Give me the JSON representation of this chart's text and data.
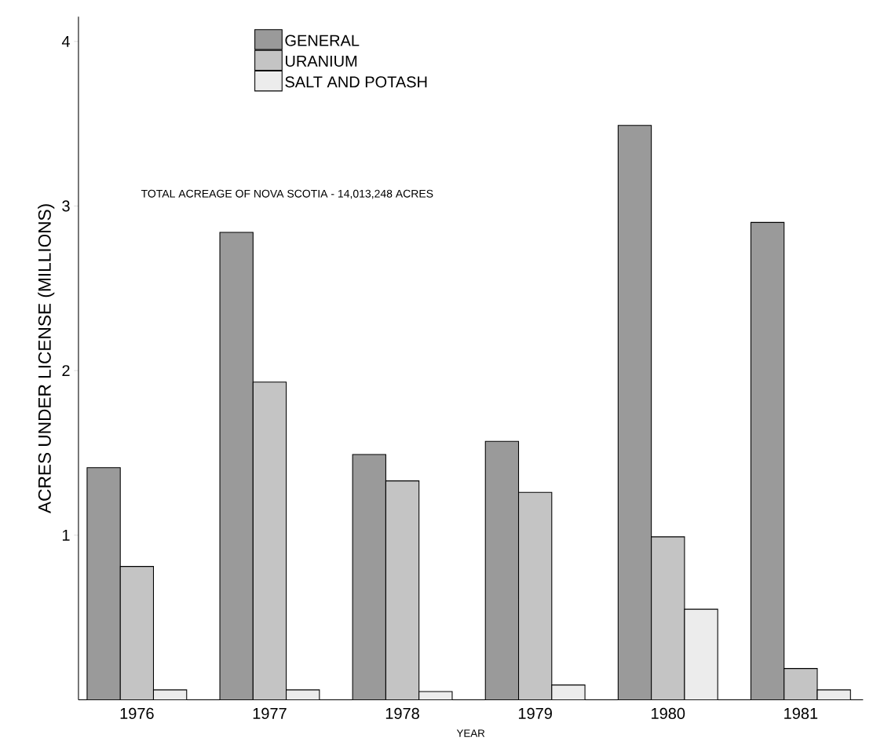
{
  "chart_data": {
    "type": "bar",
    "xlabel": "YEAR",
    "ylabel": "ACRES UNDER LICENSE (MILLIONS)",
    "categories": [
      "1976",
      "1977",
      "1978",
      "1979",
      "1980",
      "1981"
    ],
    "series": [
      {
        "name": "GENERAL",
        "color": "#9a9a9a",
        "values": [
          1.41,
          2.84,
          1.49,
          1.57,
          3.49,
          2.9
        ]
      },
      {
        "name": "URANIUM",
        "color": "#c4c4c4",
        "values": [
          0.81,
          1.93,
          1.33,
          1.26,
          0.99,
          0.19
        ]
      },
      {
        "name": "SALT AND POTASH",
        "color": "#ececec",
        "values": [
          0.06,
          0.06,
          0.05,
          0.09,
          0.55,
          0.06
        ]
      }
    ],
    "ylim": [
      0,
      4.15
    ],
    "yticks": [
      1,
      2,
      3,
      4
    ],
    "legend": "top left",
    "annotations": [
      "TOTAL ACREAGE OF NOVA SCOTIA - 14,013,248 ACRES"
    ]
  }
}
